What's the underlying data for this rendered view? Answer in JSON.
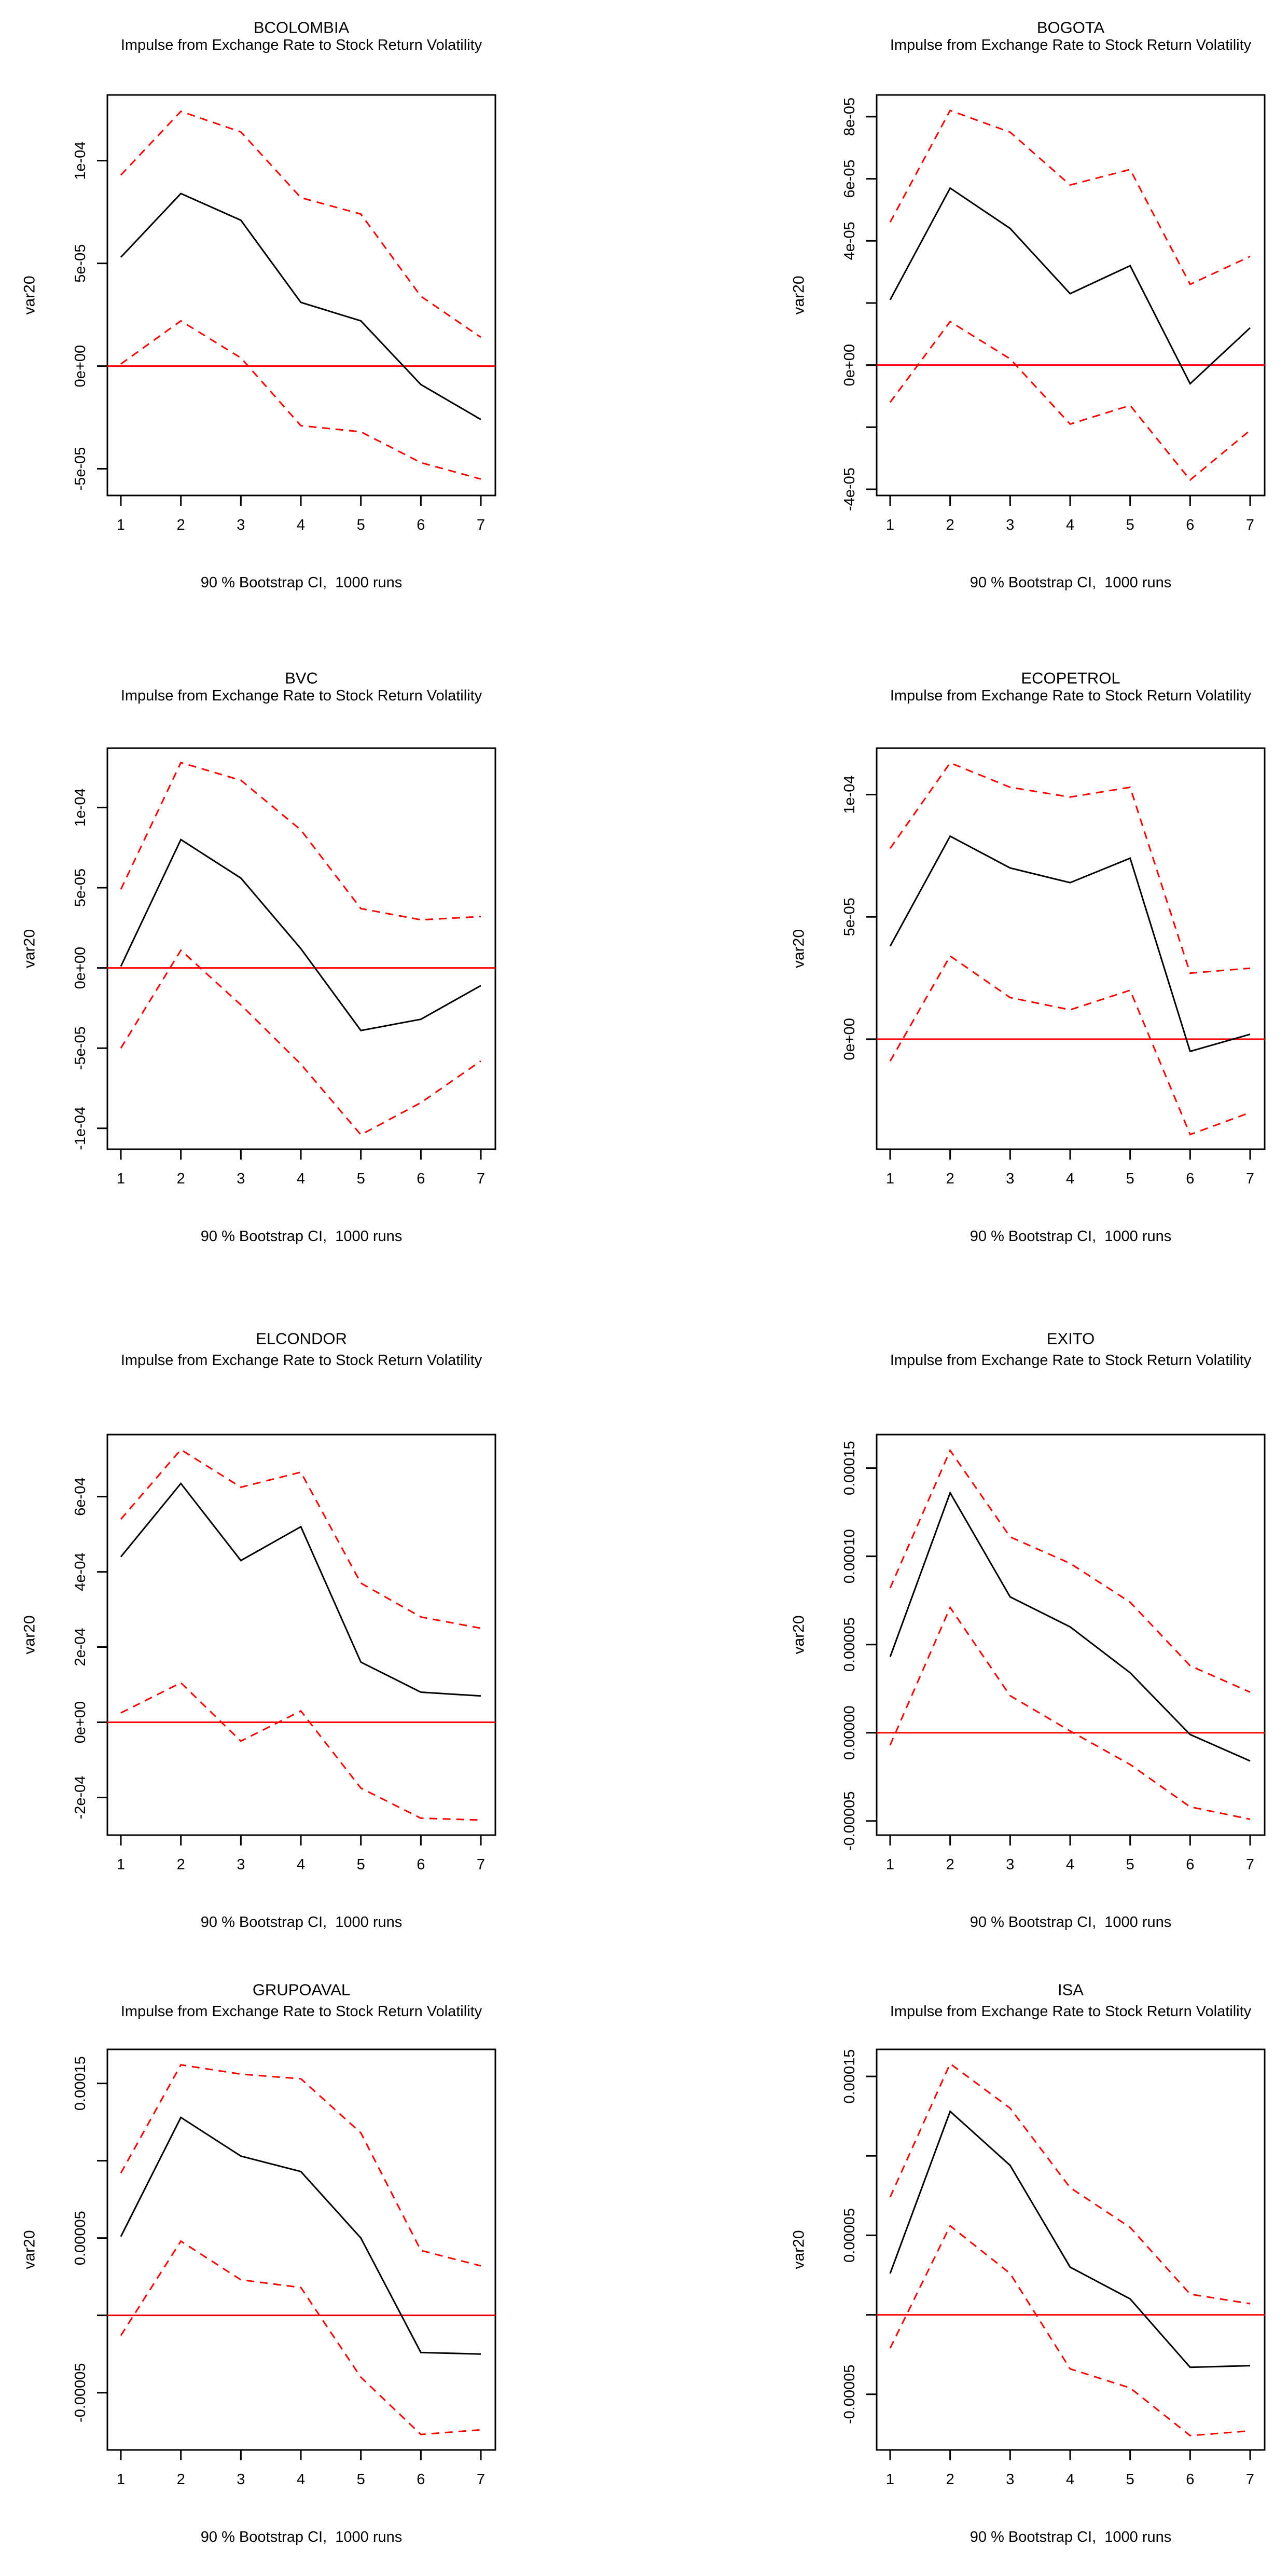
{
  "shared": {
    "subtitle": "Impulse from Exchange Rate to Stock Return Volatility",
    "caption": "90 % Bootstrap CI,  1000 runs",
    "y_axis_label": "var20",
    "x_tick_labels": [
      "1",
      "2",
      "3",
      "4",
      "5",
      "6",
      "7"
    ],
    "colors": {
      "impulse": "#000000",
      "ci": "#FF0000",
      "zero_line": "#FF0000",
      "axis": "#000000",
      "background": "#FFFFFF"
    }
  },
  "chart_data": [
    {
      "type": "line",
      "title": "BCOLOMBIA",
      "x": [
        1,
        2,
        3,
        4,
        5,
        6,
        7
      ],
      "ylim": [
        -6.3e-05,
        0.000132
      ],
      "zero_line": true,
      "y_ticks": [
        {
          "value": -5e-05,
          "label": "-5e-05"
        },
        {
          "value": 0.0,
          "label": "0e+00"
        },
        {
          "value": 5e-05,
          "label": "5e-05"
        },
        {
          "value": 0.0001,
          "label": "1e-04"
        }
      ],
      "series": [
        {
          "name": "impulse_response",
          "style": "solid",
          "color": "#000000",
          "values": [
            5.3e-05,
            8.4e-05,
            7.1e-05,
            3.1e-05,
            2.2e-05,
            -9e-06,
            -2.6e-05
          ]
        },
        {
          "name": "upper_90_ci",
          "style": "dashed",
          "color": "#FF0000",
          "values": [
            9.3e-05,
            0.000124,
            0.000114,
            8.2e-05,
            7.4e-05,
            3.4e-05,
            1.4e-05
          ]
        },
        {
          "name": "lower_90_ci",
          "style": "dashed",
          "color": "#FF0000",
          "values": [
            1e-06,
            2.2e-05,
            4e-06,
            -2.9e-05,
            -3.2e-05,
            -4.7e-05,
            -5.5e-05
          ]
        }
      ]
    },
    {
      "type": "line",
      "title": "BOGOTA",
      "x": [
        1,
        2,
        3,
        4,
        5,
        6,
        7
      ],
      "ylim": [
        -4.2e-05,
        8.7e-05
      ],
      "zero_line": true,
      "y_ticks": [
        {
          "value": -4e-05,
          "label": "-4e-05"
        },
        {
          "value": -2e-05,
          "label": ""
        },
        {
          "value": 0.0,
          "label": "0e+00"
        },
        {
          "value": 2e-05,
          "label": ""
        },
        {
          "value": 4e-05,
          "label": "4e-05"
        },
        {
          "value": 6e-05,
          "label": "6e-05"
        },
        {
          "value": 8e-05,
          "label": "8e-05"
        }
      ],
      "series": [
        {
          "name": "impulse_response",
          "style": "solid",
          "color": "#000000",
          "values": [
            2.1e-05,
            5.7e-05,
            4.4e-05,
            2.3e-05,
            3.2e-05,
            -6e-06,
            1.2e-05
          ]
        },
        {
          "name": "upper_90_ci",
          "style": "dashed",
          "color": "#FF0000",
          "values": [
            4.6e-05,
            8.2e-05,
            7.5e-05,
            5.8e-05,
            6.3e-05,
            2.6e-05,
            3.5e-05
          ]
        },
        {
          "name": "lower_90_ci",
          "style": "dashed",
          "color": "#FF0000",
          "values": [
            -1.2e-05,
            1.4e-05,
            2e-06,
            -1.9e-05,
            -1.3e-05,
            -3.7e-05,
            -2.1e-05
          ]
        }
      ]
    },
    {
      "type": "line",
      "title": "BVC",
      "x": [
        1,
        2,
        3,
        4,
        5,
        6,
        7
      ],
      "ylim": [
        -0.000113,
        0.000137
      ],
      "zero_line": true,
      "y_ticks": [
        {
          "value": -0.0001,
          "label": "-1e-04"
        },
        {
          "value": -5e-05,
          "label": "-5e-05"
        },
        {
          "value": 0.0,
          "label": "0e+00"
        },
        {
          "value": 5e-05,
          "label": "5e-05"
        },
        {
          "value": 0.0001,
          "label": "1e-04"
        }
      ],
      "series": [
        {
          "name": "impulse_response",
          "style": "solid",
          "color": "#000000",
          "values": [
            1e-06,
            8e-05,
            5.6e-05,
            1.2e-05,
            -3.9e-05,
            -3.2e-05,
            -1.1e-05
          ]
        },
        {
          "name": "upper_90_ci",
          "style": "dashed",
          "color": "#FF0000",
          "values": [
            4.9e-05,
            0.000128,
            0.000117,
            8.6e-05,
            3.7e-05,
            3e-05,
            3.2e-05
          ]
        },
        {
          "name": "lower_90_ci",
          "style": "dashed",
          "color": "#FF0000",
          "values": [
            -5e-05,
            1.1e-05,
            -2.3e-05,
            -6e-05,
            -0.000104,
            -8.4e-05,
            -5.8e-05
          ]
        }
      ]
    },
    {
      "type": "line",
      "title": "ECOPETROL",
      "x": [
        1,
        2,
        3,
        4,
        5,
        6,
        7
      ],
      "ylim": [
        -4.5e-05,
        0.000119
      ],
      "zero_line": true,
      "y_ticks": [
        {
          "value": 0.0,
          "label": "0e+00"
        },
        {
          "value": 5e-05,
          "label": "5e-05"
        },
        {
          "value": 0.0001,
          "label": "1e-04"
        }
      ],
      "series": [
        {
          "name": "impulse_response",
          "style": "solid",
          "color": "#000000",
          "values": [
            3.8e-05,
            8.3e-05,
            7e-05,
            6.4e-05,
            7.4e-05,
            -5e-06,
            2e-06
          ]
        },
        {
          "name": "upper_90_ci",
          "style": "dashed",
          "color": "#FF0000",
          "values": [
            7.8e-05,
            0.000113,
            0.000103,
            9.9e-05,
            0.000103,
            2.7e-05,
            2.9e-05
          ]
        },
        {
          "name": "lower_90_ci",
          "style": "dashed",
          "color": "#FF0000",
          "values": [
            -9e-06,
            3.4e-05,
            1.7e-05,
            1.2e-05,
            2e-05,
            -3.9e-05,
            -3e-05
          ]
        }
      ]
    },
    {
      "type": "line",
      "title": "ELCONDOR",
      "x": [
        1,
        2,
        3,
        4,
        5,
        6,
        7
      ],
      "ylim": [
        -0.0003,
        0.000765
      ],
      "zero_line": true,
      "y_ticks": [
        {
          "value": -0.0002,
          "label": "-2e-04"
        },
        {
          "value": 0.0,
          "label": "0e+00"
        },
        {
          "value": 0.0002,
          "label": "2e-04"
        },
        {
          "value": 0.0004,
          "label": "4e-04"
        },
        {
          "value": 0.0006,
          "label": "6e-04"
        }
      ],
      "series": [
        {
          "name": "impulse_response",
          "style": "solid",
          "color": "#000000",
          "values": [
            0.00044,
            0.000635,
            0.00043,
            0.00052,
            0.00016,
            8e-05,
            7e-05
          ]
        },
        {
          "name": "upper_90_ci",
          "style": "dashed",
          "color": "#FF0000",
          "values": [
            0.00054,
            0.000725,
            0.000625,
            0.000665,
            0.00037,
            0.00028,
            0.00025
          ]
        },
        {
          "name": "lower_90_ci",
          "style": "dashed",
          "color": "#FF0000",
          "values": [
            2.5e-05,
            0.000105,
            -5e-05,
            3e-05,
            -0.000175,
            -0.000255,
            -0.00026
          ]
        }
      ]
    },
    {
      "type": "line",
      "title": "EXITO",
      "x": [
        1,
        2,
        3,
        4,
        5,
        6,
        7
      ],
      "ylim": [
        -5.8e-05,
        0.000169
      ],
      "zero_line": true,
      "y_ticks": [
        {
          "value": -5e-05,
          "label": "-0.00005"
        },
        {
          "value": 0.0,
          "label": "0.00000"
        },
        {
          "value": 5e-05,
          "label": "0.00005"
        },
        {
          "value": 0.0001,
          "label": "0.00010"
        },
        {
          "value": 0.00015,
          "label": "0.00015"
        }
      ],
      "series": [
        {
          "name": "impulse_response",
          "style": "solid",
          "color": "#000000",
          "values": [
            4.3e-05,
            0.000136,
            7.7e-05,
            6e-05,
            3.4e-05,
            -1e-06,
            -1.6e-05
          ]
        },
        {
          "name": "upper_90_ci",
          "style": "dashed",
          "color": "#FF0000",
          "values": [
            8.2e-05,
            0.00016,
            0.000111,
            9.6e-05,
            7.4e-05,
            3.8e-05,
            2.3e-05
          ]
        },
        {
          "name": "lower_90_ci",
          "style": "dashed",
          "color": "#FF0000",
          "values": [
            -7e-06,
            7.1e-05,
            2.1e-05,
            1e-06,
            -1.8e-05,
            -4.2e-05,
            -4.9e-05
          ]
        }
      ]
    },
    {
      "type": "line",
      "title": "GRUPOAVAL",
      "x": [
        1,
        2,
        3,
        4,
        5,
        6,
        7
      ],
      "ylim": [
        -8.7e-05,
        0.000172
      ],
      "zero_line": true,
      "y_ticks": [
        {
          "value": -5e-05,
          "label": "-0.00005"
        },
        {
          "value": 0.0,
          "label": ""
        },
        {
          "value": 5e-05,
          "label": "0.00005"
        },
        {
          "value": 0.0001,
          "label": ""
        },
        {
          "value": 0.00015,
          "label": "0.00015"
        }
      ],
      "series": [
        {
          "name": "impulse_response",
          "style": "solid",
          "color": "#000000",
          "values": [
            5.1e-05,
            0.000128,
            0.000103,
            9.3e-05,
            5e-05,
            -2.4e-05,
            -2.5e-05
          ]
        },
        {
          "name": "upper_90_ci",
          "style": "dashed",
          "color": "#FF0000",
          "values": [
            9.2e-05,
            0.000162,
            0.000156,
            0.000153,
            0.000118,
            4.2e-05,
            3.2e-05
          ]
        },
        {
          "name": "lower_90_ci",
          "style": "dashed",
          "color": "#FF0000",
          "values": [
            -1.3e-05,
            4.8e-05,
            2.3e-05,
            1.8e-05,
            -4e-05,
            -7.7e-05,
            -7.4e-05
          ]
        }
      ]
    },
    {
      "type": "line",
      "title": "ISA",
      "x": [
        1,
        2,
        3,
        4,
        5,
        6,
        7
      ],
      "ylim": [
        -8.5e-05,
        0.000167
      ],
      "zero_line": true,
      "y_ticks": [
        {
          "value": -5e-05,
          "label": "-0.00005"
        },
        {
          "value": 0.0,
          "label": ""
        },
        {
          "value": 5e-05,
          "label": "0.00005"
        },
        {
          "value": 0.0001,
          "label": ""
        },
        {
          "value": 0.00015,
          "label": "0.00015"
        }
      ],
      "series": [
        {
          "name": "impulse_response",
          "style": "solid",
          "color": "#000000",
          "values": [
            2.6e-05,
            0.000128,
            9.4e-05,
            3e-05,
            1e-05,
            -3.3e-05,
            -3.2e-05
          ]
        },
        {
          "name": "upper_90_ci",
          "style": "dashed",
          "color": "#FF0000",
          "values": [
            7.4e-05,
            0.000158,
            0.00013,
            8e-05,
            5.5e-05,
            1.3e-05,
            7e-06
          ]
        },
        {
          "name": "lower_90_ci",
          "style": "dashed",
          "color": "#FF0000",
          "values": [
            -2.1e-05,
            5.6e-05,
            2.6e-05,
            -3.4e-05,
            -4.6e-05,
            -7.6e-05,
            -7.3e-05
          ]
        }
      ]
    }
  ]
}
